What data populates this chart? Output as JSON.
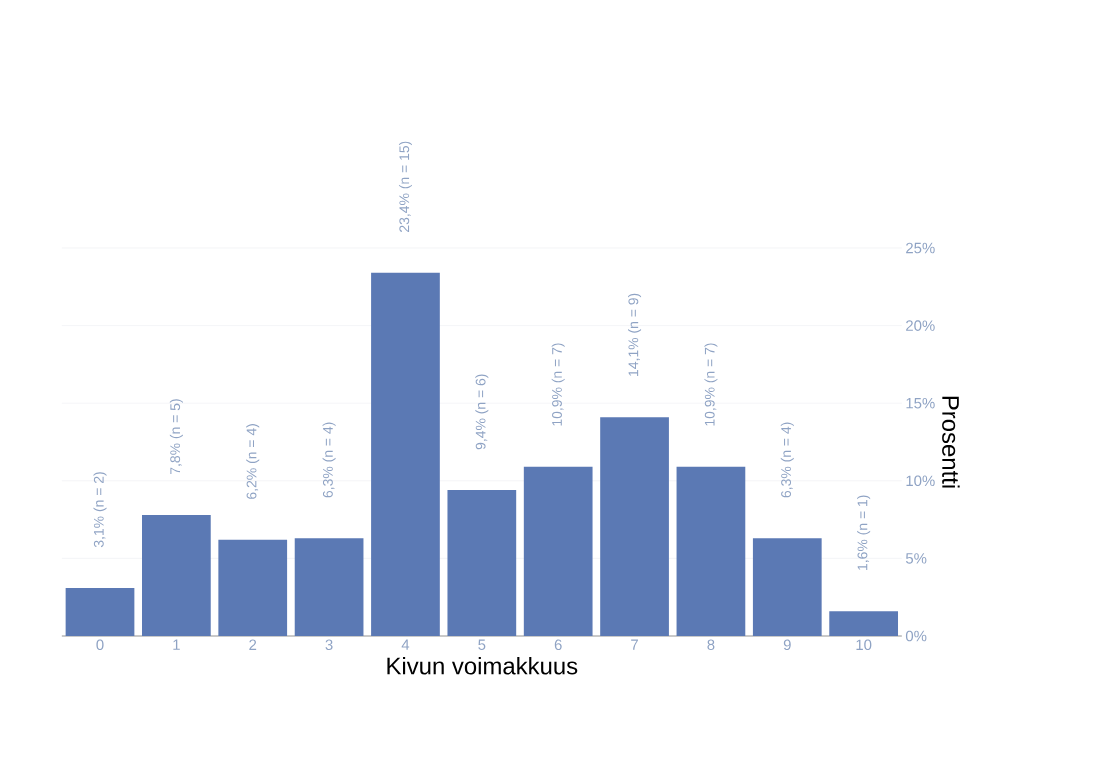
{
  "chart_data": {
    "type": "bar",
    "xlabel": "Kivun voimakkuus",
    "ylabel": "Prosentti",
    "categories": [
      "0",
      "1",
      "2",
      "3",
      "4",
      "5",
      "6",
      "7",
      "8",
      "9",
      "10"
    ],
    "values": [
      3.1,
      7.8,
      6.2,
      6.3,
      23.4,
      9.4,
      10.9,
      14.1,
      10.9,
      6.3,
      1.6
    ],
    "value_labels": [
      "3,1% (n = 2)",
      "7,8% (n = 5)",
      "6,2% (n = 4)",
      "6,3% (n = 4)",
      "23,4% (n = 15)",
      "9,4% (n = 6)",
      "10,9% (n = 7)",
      "14,1% (n = 9)",
      "10,9% (n = 7)",
      "6,3% (n = 4)",
      "1,6% (n = 1)"
    ],
    "color": "#5b79b4",
    "ylim": [
      0,
      25
    ],
    "yticks": [
      {
        "value": 0,
        "label": "0%"
      },
      {
        "value": 5,
        "label": "5%"
      },
      {
        "value": 10,
        "label": "10%"
      },
      {
        "value": 15,
        "label": "15%"
      },
      {
        "value": 20,
        "label": "20%"
      },
      {
        "value": 25,
        "label": "25%"
      }
    ],
    "grid": "y"
  }
}
